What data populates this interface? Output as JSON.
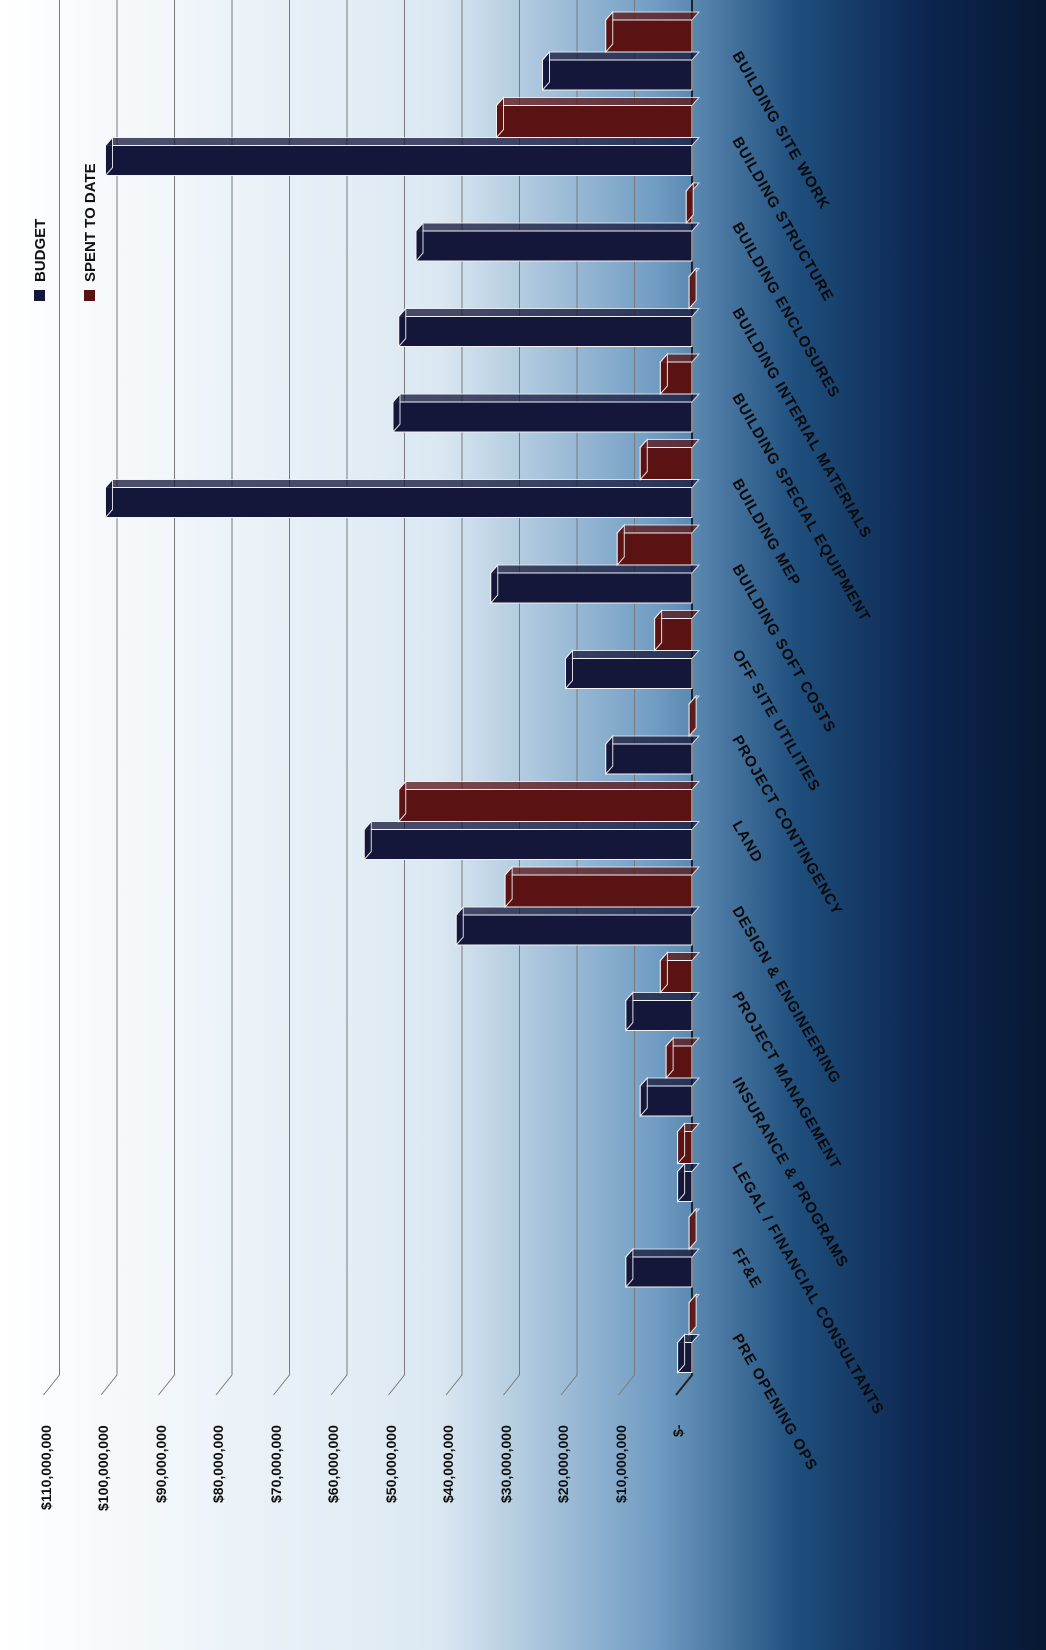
{
  "chart_data": {
    "type": "bar",
    "title": "",
    "xlabel": "",
    "ylabel": "",
    "orientation": "rotated-90-ccw",
    "categories": [
      "BUILDING SITE WORK",
      "BUILDING STRUCTURE",
      "BUILDING ENCLOSURES",
      "BUILDING INTERIAL MATERIALS",
      "BUILDING SPECIAL EQUIPMENT",
      "BUILDING MEP",
      "BUILDING SOFT COSTS",
      "OFF SITE UTILITIES",
      "PROJECT CONTINGENCY",
      "LAND",
      "DESIGN & ENGINEERING",
      "PROJECT MANAGEMENT",
      "INSURANCE & PROGRAMS",
      "LEGAL / FINANCIAL CONSULTANTS",
      "FF&E",
      "PRE OPENING OPS"
    ],
    "series": [
      {
        "name": "BUDGET",
        "color": "#14163a",
        "values": [
          26000000,
          102000000,
          48000000,
          51000000,
          52000000,
          102000000,
          35000000,
          22000000,
          15000000,
          57000000,
          41000000,
          11500000,
          9000000,
          2500000,
          11500000,
          2500000
        ]
      },
      {
        "name": "SPENT TO DATE",
        "color": "#5a1212",
        "values": [
          15000000,
          34000000,
          1000000,
          500000,
          5500000,
          9000000,
          13000000,
          6500000,
          500000,
          51000000,
          32500000,
          5500000,
          4500000,
          2500000,
          500000,
          500000
        ]
      }
    ],
    "y_ticks": [
      "$-",
      "$10,000,000",
      "$20,000,000",
      "$30,000,000",
      "$40,000,000",
      "$50,000,000",
      "$60,000,000",
      "$70,000,000",
      "$80,000,000",
      "$90,000,000",
      "$100,000,000",
      "$110,000,000"
    ],
    "ylim": [
      0,
      110000000
    ],
    "grid": true,
    "legend_placement": "top-right"
  }
}
